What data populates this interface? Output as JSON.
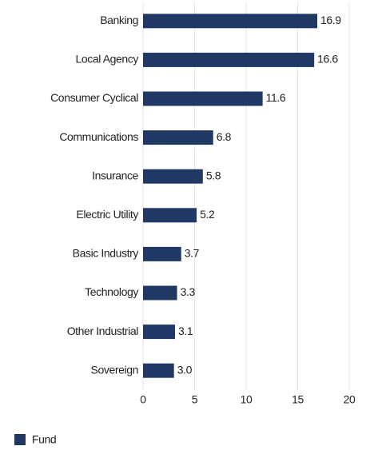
{
  "chart_data": {
    "type": "bar",
    "orientation": "horizontal",
    "categories": [
      "Banking",
      "Local Agency",
      "Consumer Cyclical",
      "Communications",
      "Insurance",
      "Electric Utility",
      "Basic Industry",
      "Technology",
      "Other Industrial",
      "Sovereign"
    ],
    "series": [
      {
        "name": "Fund",
        "color": "#1f3864",
        "values": [
          16.9,
          16.6,
          11.6,
          6.8,
          5.8,
          5.2,
          3.7,
          3.3,
          3.1,
          3.0
        ],
        "value_labels": [
          "16.9",
          "16.6",
          "11.6",
          "6.8",
          "5.8",
          "5.2",
          "3.7",
          "3.3",
          "3.1",
          "3.0"
        ]
      }
    ],
    "xlim": [
      0,
      20
    ],
    "xticks": [
      0,
      5,
      10,
      15,
      20
    ],
    "grid": true,
    "legend": "bottom-left"
  }
}
